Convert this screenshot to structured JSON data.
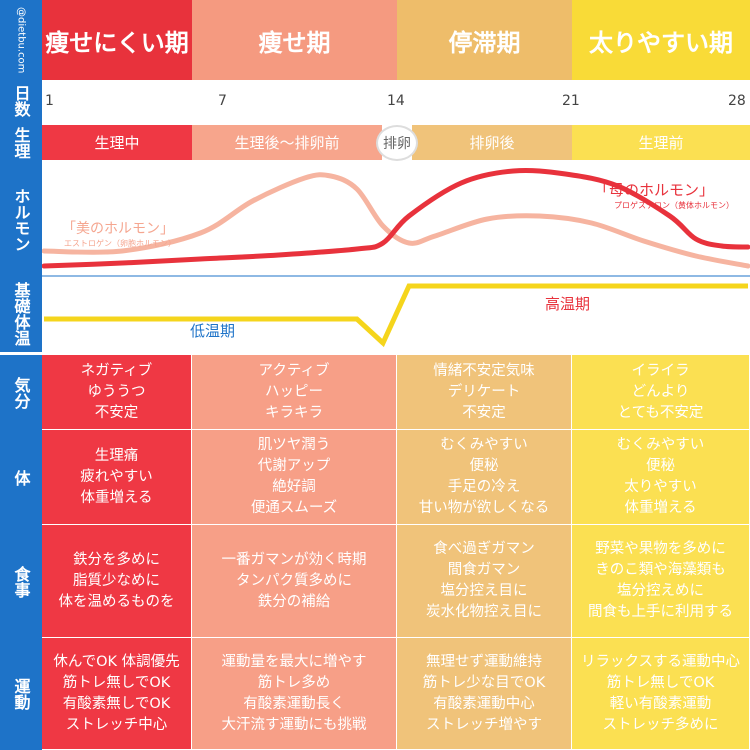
{
  "watermark": "@dietbu.com",
  "columns": [
    {
      "title": "痩せにくい期",
      "color": "#e8323c"
    },
    {
      "title": "痩せ期",
      "color": "#f59a80"
    },
    {
      "title": "停滞期",
      "color": "#eebd6a"
    },
    {
      "title": "太りやすい期",
      "color": "#f9db37"
    }
  ],
  "cell_colors": [
    "#ef3844",
    "#f79f87",
    "#f0c37a",
    "#fbe052"
  ],
  "row_labels": {
    "days": "日数",
    "physiology": "生理",
    "hormone": "ホルモン",
    "bbt": "基礎体温",
    "mood": "気分",
    "body": "体",
    "meal": "食事",
    "exercise": "運動"
  },
  "days": [
    "1",
    "7",
    "14",
    "21",
    "28"
  ],
  "phases": {
    "menstruation": "生理中",
    "post_to_ovulation": "生理後～排卵前",
    "ovulation": "排卵",
    "post_ovulation": "排卵後",
    "premenstrual": "生理前"
  },
  "chart_data": {
    "type": "line",
    "x": [
      1,
      7,
      14,
      21,
      28
    ],
    "xlim": [
      1,
      28
    ],
    "series": [
      {
        "name": "「美のホルモン」",
        "subtitle": "エストロゲン（卵胞ホルモン）",
        "color": "#f6b4a0",
        "x": [
          1,
          4,
          7,
          9,
          11,
          12,
          13,
          14,
          15,
          16,
          18,
          20,
          22,
          24,
          26,
          28
        ],
        "values": [
          0.2,
          0.2,
          0.38,
          0.7,
          0.93,
          0.95,
          0.82,
          0.45,
          0.28,
          0.35,
          0.52,
          0.55,
          0.48,
          0.3,
          0.15,
          0.05
        ]
      },
      {
        "name": "「母のホルモン」",
        "subtitle": "プロゲステロン（黄体ホルモン）",
        "color": "#e8323c",
        "x": [
          1,
          4,
          7,
          10,
          13,
          14,
          15,
          17,
          19,
          21,
          23,
          25,
          26,
          27,
          28
        ],
        "values": [
          0.05,
          0.08,
          0.12,
          0.16,
          0.22,
          0.28,
          0.55,
          0.88,
          1.0,
          0.97,
          0.85,
          0.55,
          0.32,
          0.25,
          0.24
        ]
      },
      {
        "name": "基礎体温",
        "color": "#f5d51c",
        "x": [
          1,
          13,
          14,
          15,
          28
        ],
        "values": [
          0.4,
          0.4,
          0.0,
          0.95,
          0.95
        ]
      }
    ],
    "annotations": [
      "低温期",
      "高温期"
    ]
  },
  "mood": [
    [
      "ネガティブ",
      "ゆううつ",
      "不安定"
    ],
    [
      "アクティブ",
      "ハッピー",
      "キラキラ"
    ],
    [
      "情緒不安定気味",
      "デリケート",
      "不安定"
    ],
    [
      "イライラ",
      "どんより",
      "とても不安定"
    ]
  ],
  "body": [
    [
      "生理痛",
      "疲れやすい",
      "体重増える"
    ],
    [
      "肌ツヤ潤う",
      "代謝アップ",
      "絶好調",
      "便通スムーズ"
    ],
    [
      "むくみやすい",
      "便秘",
      "手足の冷え",
      "甘い物が欲しくなる"
    ],
    [
      "むくみやすい",
      "便秘",
      "太りやすい",
      "体重増える"
    ]
  ],
  "meal": [
    [
      "鉄分を多めに",
      "脂質少なめに",
      "体を温めるものを"
    ],
    [
      "一番ガマンが効く時期",
      "タンパク質多めに",
      "鉄分の補給"
    ],
    [
      "食べ過ぎガマン",
      "間食ガマン",
      "塩分控え目に",
      "炭水化物控え目に"
    ],
    [
      "野菜や果物を多めに",
      "きのこ類や海藻類も",
      "塩分控えめに",
      "間食も上手に利用する"
    ]
  ],
  "exercise": [
    [
      "休んでOK 体調優先",
      "筋トレ無しでOK",
      "有酸素無しでOK",
      "ストレッチ中心"
    ],
    [
      "運動量を最大に増やす",
      "筋トレ多め",
      "有酸素運動長く",
      "大汗流す運動にも挑戦"
    ],
    [
      "無理せず運動維持",
      "筋トレ少な目でOK",
      "有酸素運動中心",
      "ストレッチ増やす"
    ],
    [
      "リラックスする運動中心",
      "筋トレ無しでOK",
      "軽い有酸素運動",
      "ストレッチ多めに"
    ]
  ]
}
